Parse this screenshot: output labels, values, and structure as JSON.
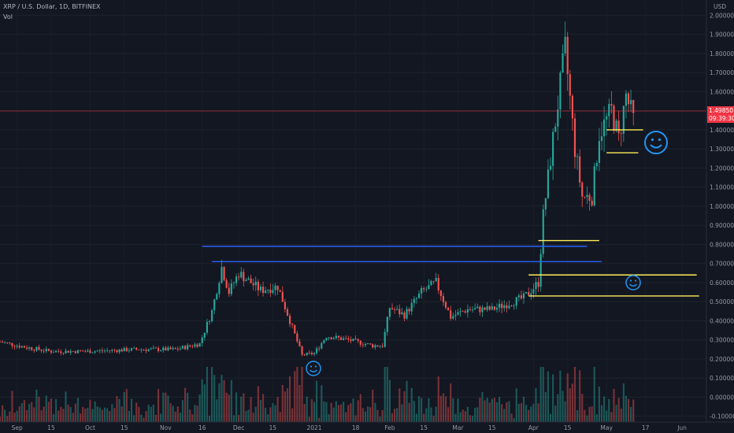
{
  "header": {
    "symbol_line": "XRP / U.S. Dollar, 1D, BITFINEX",
    "volume_label": "Vol"
  },
  "price_axis": {
    "currency": "USD",
    "last_price": "1.49850",
    "countdown": "09:39:30",
    "last_price_color": "#f23645"
  },
  "chart_data": {
    "type": "candlestick",
    "title": "XRP / U.S. Dollar, 1D, BITFINEX",
    "ylabel": "USD",
    "ylim": [
      -0.13,
      2.08
    ],
    "y_ticks": [
      "2.00000",
      "1.90000",
      "1.80000",
      "1.70000",
      "1.60000",
      "1.50000",
      "1.40000",
      "1.30000",
      "1.20000",
      "1.10000",
      "1.00000",
      "0.90000",
      "0.80000",
      "0.70000",
      "0.60000",
      "0.50000",
      "0.40000",
      "0.30000",
      "0.20000",
      "0.10000",
      "0.00000",
      "-0.10000"
    ],
    "y_tick_values": [
      2.0,
      1.9,
      1.8,
      1.7,
      1.6,
      1.5,
      1.4,
      1.3,
      1.2,
      1.1,
      1.0,
      0.9,
      0.8,
      0.7,
      0.6,
      0.5,
      0.4,
      0.3,
      0.2,
      0.1,
      0.0,
      -0.1
    ],
    "x_ticks": [
      "Sep",
      "15",
      "Oct",
      "15",
      "Nov",
      "16",
      "Dec",
      "15",
      "2021",
      "18",
      "Feb",
      "15",
      "Mar",
      "15",
      "Apr",
      "15",
      "May",
      "17",
      "Jun"
    ],
    "x_tick_dates": [
      "2020-09-01",
      "2020-09-15",
      "2020-10-01",
      "2020-10-15",
      "2020-11-01",
      "2020-11-16",
      "2020-12-01",
      "2020-12-15",
      "2021-01-01",
      "2021-01-18",
      "2021-02-01",
      "2021-02-15",
      "2021-03-01",
      "2021-03-15",
      "2021-04-01",
      "2021-04-15",
      "2021-05-01",
      "2021-05-17",
      "2021-06-01"
    ],
    "x_range": [
      "2020-08-25",
      "2021-06-11"
    ],
    "series_anchors": [
      {
        "date": "2020-08-25",
        "price": 0.29
      },
      {
        "date": "2020-09-05",
        "price": 0.26
      },
      {
        "date": "2020-09-15",
        "price": 0.24
      },
      {
        "date": "2020-10-01",
        "price": 0.24
      },
      {
        "date": "2020-10-20",
        "price": 0.25
      },
      {
        "date": "2020-11-05",
        "price": 0.25
      },
      {
        "date": "2020-11-15",
        "price": 0.28
      },
      {
        "date": "2020-11-20",
        "price": 0.45
      },
      {
        "date": "2020-11-24",
        "price": 0.68
      },
      {
        "date": "2020-11-27",
        "price": 0.55
      },
      {
        "date": "2020-12-01",
        "price": 0.65
      },
      {
        "date": "2020-12-10",
        "price": 0.56
      },
      {
        "date": "2020-12-17",
        "price": 0.58
      },
      {
        "date": "2020-12-22",
        "price": 0.4
      },
      {
        "date": "2020-12-27",
        "price": 0.22
      },
      {
        "date": "2021-01-01",
        "price": 0.23
      },
      {
        "date": "2021-01-06",
        "price": 0.32
      },
      {
        "date": "2021-01-15",
        "price": 0.3
      },
      {
        "date": "2021-01-25",
        "price": 0.27
      },
      {
        "date": "2021-01-29",
        "price": 0.27
      },
      {
        "date": "2021-02-01",
        "price": 0.47
      },
      {
        "date": "2021-02-07",
        "price": 0.43
      },
      {
        "date": "2021-02-14",
        "price": 0.55
      },
      {
        "date": "2021-02-20",
        "price": 0.6
      },
      {
        "date": "2021-02-26",
        "price": 0.42
      },
      {
        "date": "2021-03-05",
        "price": 0.46
      },
      {
        "date": "2021-03-15",
        "price": 0.46
      },
      {
        "date": "2021-03-28",
        "price": 0.52
      },
      {
        "date": "2021-04-03",
        "price": 0.6
      },
      {
        "date": "2021-04-05",
        "price": 0.95
      },
      {
        "date": "2021-04-09",
        "price": 1.35
      },
      {
        "date": "2021-04-14",
        "price": 1.82
      },
      {
        "date": "2021-04-18",
        "price": 1.3
      },
      {
        "date": "2021-04-21",
        "price": 1.05
      },
      {
        "date": "2021-04-25",
        "price": 1.05
      },
      {
        "date": "2021-04-28",
        "price": 1.38
      },
      {
        "date": "2021-05-03",
        "price": 1.5
      },
      {
        "date": "2021-05-06",
        "price": 1.35
      },
      {
        "date": "2021-05-09",
        "price": 1.58
      },
      {
        "date": "2021-05-12",
        "price": 1.45
      }
    ],
    "last_price": 1.4985,
    "horizontal_lines": [
      {
        "color": "#2962ff",
        "price": 0.79,
        "from": "2020-11-16",
        "to": "2021-04-23"
      },
      {
        "color": "#2962ff",
        "price": 0.71,
        "from": "2020-11-20",
        "to": "2021-04-29"
      },
      {
        "color": "#ffee58",
        "price": 1.4,
        "from": "2021-05-01",
        "to": "2021-05-16"
      },
      {
        "color": "#ffee58",
        "price": 1.28,
        "from": "2021-05-01",
        "to": "2021-05-14"
      },
      {
        "color": "#ffee58",
        "price": 0.82,
        "from": "2021-04-03",
        "to": "2021-04-28"
      },
      {
        "color": "#ffee58",
        "price": 0.64,
        "from": "2021-03-30",
        "to": "2021-06-07"
      },
      {
        "color": "#ffee58",
        "price": 0.53,
        "from": "2021-03-30",
        "to": "2021-06-08"
      }
    ],
    "colors": {
      "up": "#26a69a",
      "down": "#ef5350",
      "blue_line": "#2962ff",
      "yellow_line": "#ffee58",
      "background": "#131722"
    }
  }
}
